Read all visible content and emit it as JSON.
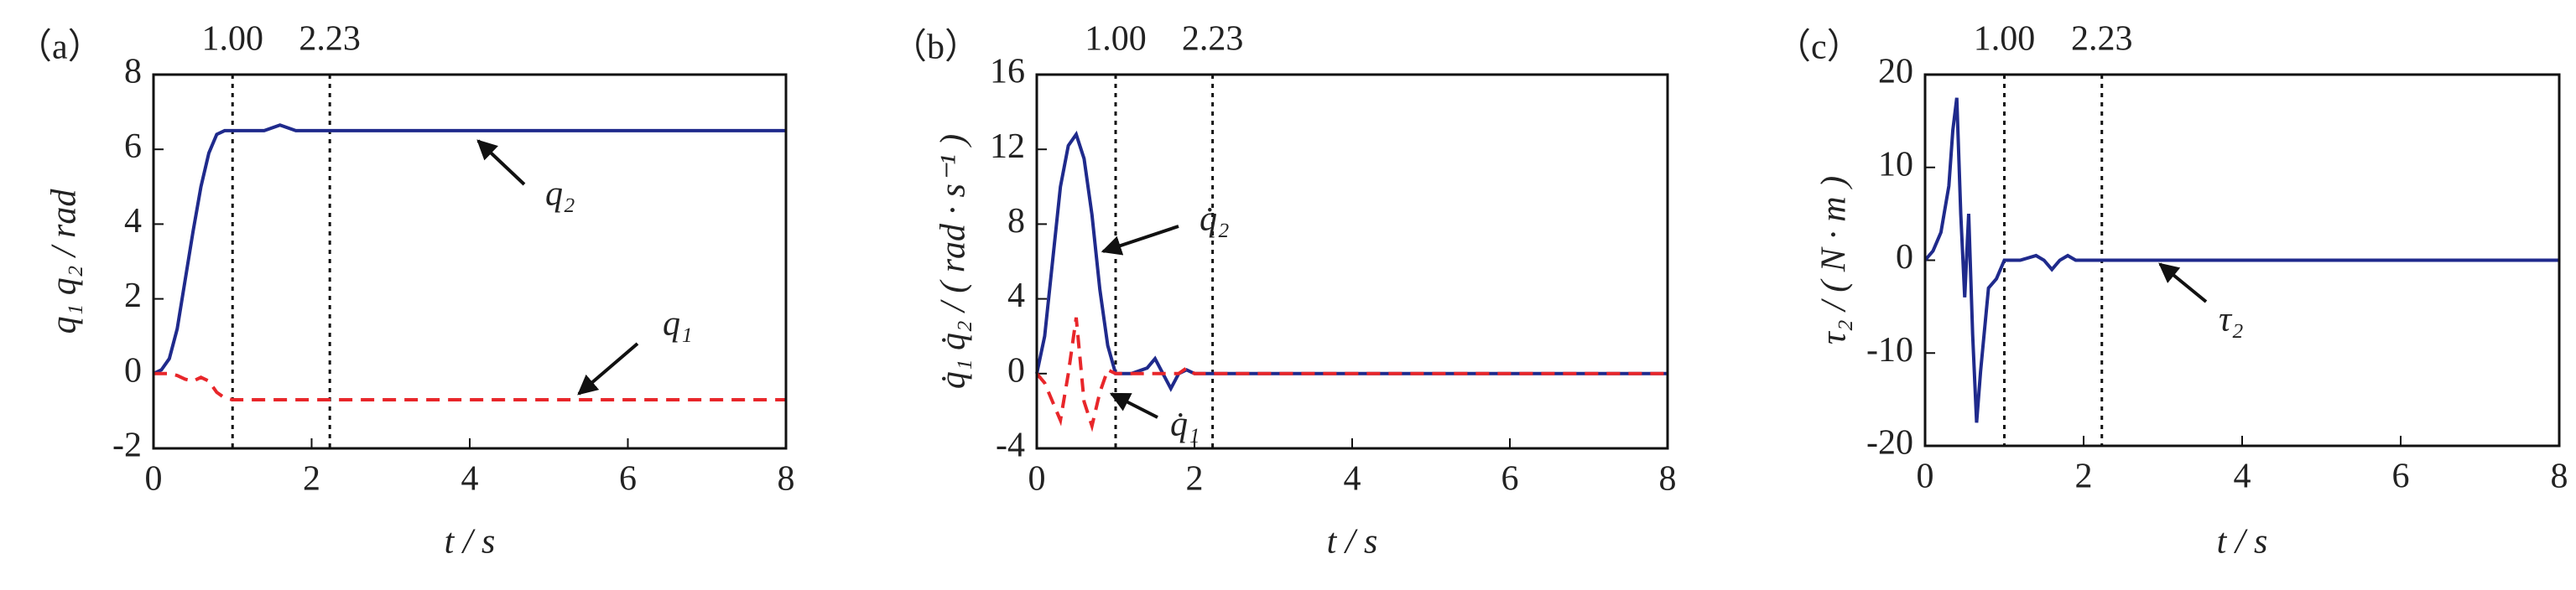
{
  "chart_data": [
    {
      "type": "line",
      "panel": "（a）",
      "ylabel": "q₁    q₂ / rad",
      "xlabel": "t / s",
      "x": [
        0,
        0.1,
        0.2,
        0.3,
        0.4,
        0.5,
        0.6,
        0.7,
        0.8,
        0.9,
        1.0,
        1.2,
        1.4,
        1.6,
        1.8,
        2.0,
        3,
        4,
        5,
        6,
        7,
        8
      ],
      "series": [
        {
          "name": "q₂",
          "color": "#1f2a8c",
          "linestyle": "solid",
          "values": [
            0,
            0.1,
            0.4,
            1.2,
            2.5,
            3.8,
            5.0,
            5.9,
            6.4,
            6.5,
            6.5,
            6.5,
            6.5,
            6.65,
            6.5,
            6.5,
            6.5,
            6.5,
            6.5,
            6.5,
            6.5,
            6.5
          ]
        },
        {
          "name": "q₁",
          "color": "#e8262a",
          "linestyle": "dashed",
          "values": [
            0,
            0,
            0,
            -0.05,
            -0.15,
            -0.2,
            -0.1,
            -0.2,
            -0.5,
            -0.65,
            -0.7,
            -0.7,
            -0.7,
            -0.7,
            -0.7,
            -0.7,
            -0.7,
            -0.7,
            -0.7,
            -0.7,
            -0.7,
            -0.7
          ]
        }
      ],
      "vlines": [
        {
          "value": 1,
          "label": "1.00"
        },
        {
          "value": 2.23,
          "label": "2.23"
        }
      ],
      "xlim": [
        0,
        8
      ],
      "xticks": [
        0,
        2,
        4,
        6,
        8
      ],
      "ylim": [
        -2,
        8
      ],
      "yticks": [
        -2,
        0,
        2,
        4,
        6,
        8
      ]
    },
    {
      "type": "line",
      "panel": "（b）",
      "ylabel": "q̇₁    q̇₂ / ( rad · s⁻¹ )",
      "xlabel": "t / s",
      "x": [
        0,
        0.1,
        0.2,
        0.3,
        0.4,
        0.5,
        0.6,
        0.7,
        0.8,
        0.9,
        1.0,
        1.2,
        1.4,
        1.5,
        1.6,
        1.7,
        1.8,
        1.9,
        2.0,
        3,
        4,
        5,
        6,
        7,
        8
      ],
      "series": [
        {
          "name": "q̇₂",
          "color": "#1f2a8c",
          "linestyle": "solid",
          "values": [
            0,
            2,
            6,
            10,
            12.2,
            12.8,
            11.5,
            8.5,
            4.5,
            1.5,
            0,
            0,
            0.3,
            0.8,
            0,
            -0.8,
            0,
            0.2,
            0,
            0,
            0,
            0,
            0,
            0,
            0
          ]
        },
        {
          "name": "q̇₁",
          "color": "#e8262a",
          "linestyle": "dashed",
          "values": [
            0,
            -0.5,
            -1.5,
            -2.5,
            0,
            3,
            -1.5,
            -2.8,
            -1,
            0.2,
            0,
            0,
            0,
            0,
            0,
            0,
            0,
            0.3,
            0,
            0,
            0,
            0,
            0,
            0,
            0
          ]
        }
      ],
      "vlines": [
        {
          "value": 1,
          "label": "1.00"
        },
        {
          "value": 2.23,
          "label": "2.23"
        }
      ],
      "xlim": [
        0,
        8
      ],
      "xticks": [
        0,
        2,
        4,
        6,
        8
      ],
      "ylim": [
        -4,
        16
      ],
      "yticks": [
        -4,
        0,
        4,
        8,
        12,
        16
      ]
    },
    {
      "type": "line",
      "panel": "（c）",
      "ylabel": "τ₂ / ( N · m )",
      "xlabel": "t / s",
      "x": [
        0,
        0.1,
        0.2,
        0.3,
        0.35,
        0.4,
        0.45,
        0.5,
        0.55,
        0.6,
        0.65,
        0.7,
        0.8,
        0.9,
        1.0,
        1.2,
        1.4,
        1.5,
        1.6,
        1.7,
        1.8,
        1.9,
        2.0,
        3,
        8
      ],
      "series": [
        {
          "name": "τ₂",
          "color": "#1f2a8c",
          "linestyle": "solid",
          "values": [
            0,
            1,
            3,
            8,
            14,
            17.5,
            5,
            -4,
            5,
            -8,
            -17.5,
            -12,
            -3,
            -2,
            0,
            0,
            0.5,
            0,
            -1,
            0,
            0.5,
            0,
            0,
            0,
            0
          ]
        }
      ],
      "vlines": [
        {
          "value": 1,
          "label": "1.00"
        },
        {
          "value": 2.23,
          "label": "2.23"
        }
      ],
      "xlim": [
        0,
        8
      ],
      "xticks": [
        0,
        2,
        4,
        6,
        8
      ],
      "ylim": [
        -20,
        20
      ],
      "yticks": [
        -20,
        -10,
        0,
        10,
        20
      ]
    }
  ]
}
